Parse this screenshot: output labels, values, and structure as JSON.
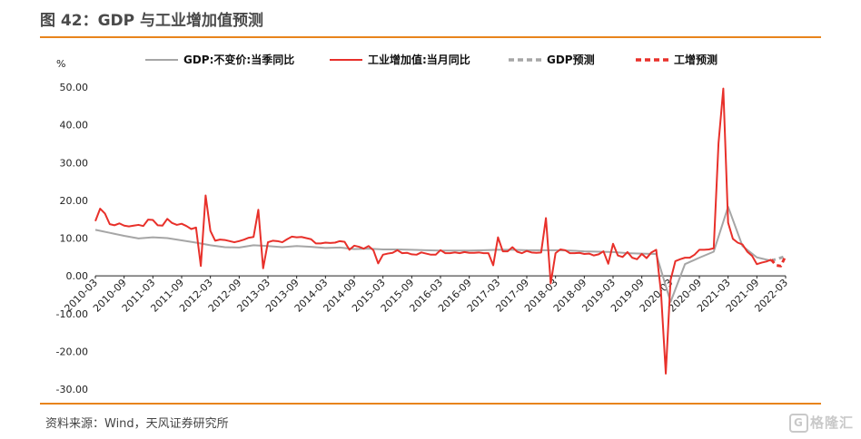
{
  "header": {
    "title": "图 42：GDP 与工业增加值预测"
  },
  "footer": {
    "source": "资料来源：Wind，天风证券研究所",
    "watermark": "格隆汇",
    "watermark_mark": "G"
  },
  "chart_data": {
    "type": "line",
    "ylabel": "%",
    "ylim": [
      -30,
      50
    ],
    "yticks": [
      "50.00",
      "40.00",
      "30.00",
      "20.00",
      "10.00",
      "0.00",
      "-10.00",
      "-20.00",
      "-30.00"
    ],
    "ytick_values": [
      50,
      40,
      30,
      20,
      10,
      0,
      -10,
      -20,
      -30
    ],
    "x_start": "2010-03",
    "x_end": "2022-03",
    "xticks": [
      "2010-03",
      "2010-09",
      "2011-03",
      "2011-09",
      "2012-03",
      "2012-09",
      "2013-03",
      "2013-09",
      "2014-03",
      "2014-09",
      "2015-03",
      "2015-09",
      "2016-03",
      "2016-09",
      "2017-03",
      "2017-09",
      "2018-03",
      "2018-09",
      "2019-03",
      "2019-09",
      "2020-03",
      "2020-09",
      "2021-03",
      "2021-09",
      "2022-03"
    ],
    "legend_position": "top",
    "grid": false,
    "colors": {
      "gdp": "#a6a6a6",
      "industry": "#e8302a",
      "gdp_forecast": "#a6a6a6",
      "industry_forecast": "#e8302a",
      "rule": "#e8841c"
    },
    "series": [
      {
        "name": "GDP:不变价:当季同比",
        "style": "solid",
        "points": [
          [
            "2010-03",
            12.2
          ],
          [
            "2010-06",
            11.4
          ],
          [
            "2010-09",
            10.6
          ],
          [
            "2010-12",
            9.9
          ],
          [
            "2011-03",
            10.2
          ],
          [
            "2011-06",
            10.0
          ],
          [
            "2011-09",
            9.4
          ],
          [
            "2011-12",
            8.8
          ],
          [
            "2012-03",
            8.1
          ],
          [
            "2012-06",
            7.6
          ],
          [
            "2012-09",
            7.5
          ],
          [
            "2012-12",
            8.1
          ],
          [
            "2013-03",
            7.9
          ],
          [
            "2013-06",
            7.6
          ],
          [
            "2013-09",
            7.9
          ],
          [
            "2013-12",
            7.7
          ],
          [
            "2014-03",
            7.4
          ],
          [
            "2014-06",
            7.5
          ],
          [
            "2014-09",
            7.1
          ],
          [
            "2014-12",
            7.2
          ],
          [
            "2015-03",
            7.0
          ],
          [
            "2015-06",
            7.0
          ],
          [
            "2015-09",
            6.9
          ],
          [
            "2015-12",
            6.8
          ],
          [
            "2016-03",
            6.7
          ],
          [
            "2016-06",
            6.7
          ],
          [
            "2016-09",
            6.7
          ],
          [
            "2016-12",
            6.8
          ],
          [
            "2017-03",
            6.9
          ],
          [
            "2017-06",
            6.9
          ],
          [
            "2017-09",
            6.8
          ],
          [
            "2017-12",
            6.8
          ],
          [
            "2018-03",
            6.8
          ],
          [
            "2018-06",
            6.7
          ],
          [
            "2018-09",
            6.5
          ],
          [
            "2018-12",
            6.4
          ],
          [
            "2019-03",
            6.3
          ],
          [
            "2019-06",
            6.0
          ],
          [
            "2019-09",
            5.9
          ],
          [
            "2019-12",
            5.8
          ],
          [
            "2020-03",
            -6.9
          ],
          [
            "2020-06",
            3.1
          ],
          [
            "2020-09",
            4.8
          ],
          [
            "2020-12",
            6.4
          ],
          [
            "2021-03",
            18.3
          ],
          [
            "2021-06",
            7.9
          ],
          [
            "2021-09",
            4.9
          ],
          [
            "2021-12",
            4.0
          ]
        ]
      },
      {
        "name": "工业增加值:当月同比",
        "style": "solid",
        "points": [
          [
            "2010-03",
            14.5
          ],
          [
            "2010-04",
            17.8
          ],
          [
            "2010-05",
            16.5
          ],
          [
            "2010-06",
            13.7
          ],
          [
            "2010-07",
            13.4
          ],
          [
            "2010-08",
            13.9
          ],
          [
            "2010-09",
            13.3
          ],
          [
            "2010-10",
            13.1
          ],
          [
            "2010-11",
            13.3
          ],
          [
            "2010-12",
            13.5
          ],
          [
            "2011-01",
            13.2
          ],
          [
            "2011-02",
            14.9
          ],
          [
            "2011-03",
            14.8
          ],
          [
            "2011-04",
            13.4
          ],
          [
            "2011-05",
            13.3
          ],
          [
            "2011-06",
            15.1
          ],
          [
            "2011-07",
            14.0
          ],
          [
            "2011-08",
            13.5
          ],
          [
            "2011-09",
            13.8
          ],
          [
            "2011-10",
            13.2
          ],
          [
            "2011-11",
            12.4
          ],
          [
            "2011-12",
            12.8
          ],
          [
            "2012-01",
            2.6
          ],
          [
            "2012-02",
            21.3
          ],
          [
            "2012-03",
            11.9
          ],
          [
            "2012-04",
            9.3
          ],
          [
            "2012-05",
            9.6
          ],
          [
            "2012-06",
            9.5
          ],
          [
            "2012-07",
            9.2
          ],
          [
            "2012-08",
            8.9
          ],
          [
            "2012-09",
            9.2
          ],
          [
            "2012-10",
            9.6
          ],
          [
            "2012-11",
            10.1
          ],
          [
            "2012-12",
            10.3
          ],
          [
            "2013-01",
            17.5
          ],
          [
            "2013-02",
            2.0
          ],
          [
            "2013-03",
            8.9
          ],
          [
            "2013-04",
            9.3
          ],
          [
            "2013-05",
            9.2
          ],
          [
            "2013-06",
            8.9
          ],
          [
            "2013-07",
            9.7
          ],
          [
            "2013-08",
            10.4
          ],
          [
            "2013-09",
            10.2
          ],
          [
            "2013-10",
            10.3
          ],
          [
            "2013-11",
            10.0
          ],
          [
            "2013-12",
            9.7
          ],
          [
            "2014-01",
            8.6
          ],
          [
            "2014-02",
            8.6
          ],
          [
            "2014-03",
            8.8
          ],
          [
            "2014-04",
            8.7
          ],
          [
            "2014-05",
            8.8
          ],
          [
            "2014-06",
            9.2
          ],
          [
            "2014-07",
            9.0
          ],
          [
            "2014-08",
            6.9
          ],
          [
            "2014-09",
            8.0
          ],
          [
            "2014-10",
            7.7
          ],
          [
            "2014-11",
            7.2
          ],
          [
            "2014-12",
            7.9
          ],
          [
            "2015-01",
            6.8
          ],
          [
            "2015-02",
            3.3
          ],
          [
            "2015-03",
            5.6
          ],
          [
            "2015-04",
            5.9
          ],
          [
            "2015-05",
            6.1
          ],
          [
            "2015-06",
            6.8
          ],
          [
            "2015-07",
            6.0
          ],
          [
            "2015-08",
            6.1
          ],
          [
            "2015-09",
            5.7
          ],
          [
            "2015-10",
            5.6
          ],
          [
            "2015-11",
            6.2
          ],
          [
            "2015-12",
            5.9
          ],
          [
            "2016-01",
            5.6
          ],
          [
            "2016-02",
            5.6
          ],
          [
            "2016-03",
            6.8
          ],
          [
            "2016-04",
            6.0
          ],
          [
            "2016-05",
            6.0
          ],
          [
            "2016-06",
            6.2
          ],
          [
            "2016-07",
            6.0
          ],
          [
            "2016-08",
            6.3
          ],
          [
            "2016-09",
            6.1
          ],
          [
            "2016-10",
            6.1
          ],
          [
            "2016-11",
            6.2
          ],
          [
            "2016-12",
            6.0
          ],
          [
            "2017-01",
            6.0
          ],
          [
            "2017-02",
            2.8
          ],
          [
            "2017-03",
            10.2
          ],
          [
            "2017-04",
            6.5
          ],
          [
            "2017-05",
            6.5
          ],
          [
            "2017-06",
            7.6
          ],
          [
            "2017-07",
            6.4
          ],
          [
            "2017-08",
            6.0
          ],
          [
            "2017-09",
            6.6
          ],
          [
            "2017-10",
            6.2
          ],
          [
            "2017-11",
            6.1
          ],
          [
            "2017-12",
            6.2
          ],
          [
            "2018-01",
            15.3
          ],
          [
            "2018-02",
            -2.0
          ],
          [
            "2018-03",
            6.0
          ],
          [
            "2018-04",
            7.0
          ],
          [
            "2018-05",
            6.8
          ],
          [
            "2018-06",
            6.0
          ],
          [
            "2018-07",
            6.0
          ],
          [
            "2018-08",
            6.1
          ],
          [
            "2018-09",
            5.8
          ],
          [
            "2018-10",
            5.9
          ],
          [
            "2018-11",
            5.4
          ],
          [
            "2018-12",
            5.7
          ],
          [
            "2019-01",
            6.5
          ],
          [
            "2019-02",
            3.2
          ],
          [
            "2019-03",
            8.5
          ],
          [
            "2019-04",
            5.4
          ],
          [
            "2019-05",
            5.0
          ],
          [
            "2019-06",
            6.3
          ],
          [
            "2019-07",
            4.8
          ],
          [
            "2019-08",
            4.4
          ],
          [
            "2019-09",
            5.8
          ],
          [
            "2019-10",
            4.7
          ],
          [
            "2019-11",
            6.2
          ],
          [
            "2019-12",
            6.9
          ],
          [
            "2020-01",
            -4.3
          ],
          [
            "2020-02",
            -25.9
          ],
          [
            "2020-03",
            -1.1
          ],
          [
            "2020-04",
            3.9
          ],
          [
            "2020-05",
            4.4
          ],
          [
            "2020-06",
            4.8
          ],
          [
            "2020-07",
            4.8
          ],
          [
            "2020-08",
            5.6
          ],
          [
            "2020-09",
            6.9
          ],
          [
            "2020-10",
            6.9
          ],
          [
            "2020-11",
            7.0
          ],
          [
            "2020-12",
            7.3
          ],
          [
            "2021-01",
            35.1
          ],
          [
            "2021-02",
            49.6
          ],
          [
            "2021-03",
            14.1
          ],
          [
            "2021-04",
            9.8
          ],
          [
            "2021-05",
            8.8
          ],
          [
            "2021-06",
            8.3
          ],
          [
            "2021-07",
            6.4
          ],
          [
            "2021-08",
            5.3
          ],
          [
            "2021-09",
            3.1
          ],
          [
            "2021-10",
            3.5
          ],
          [
            "2021-11",
            3.8
          ],
          [
            "2021-12",
            4.3
          ]
        ]
      },
      {
        "name": "GDP预测",
        "style": "dashed",
        "points": [
          [
            "2021-12",
            4.0
          ],
          [
            "2022-03",
            5.2
          ]
        ]
      },
      {
        "name": "工增预测",
        "style": "dashed",
        "points": [
          [
            "2021-12",
            4.3
          ],
          [
            "2022-01",
            2.8
          ],
          [
            "2022-02",
            2.6
          ],
          [
            "2022-03",
            5.3
          ]
        ]
      }
    ]
  }
}
